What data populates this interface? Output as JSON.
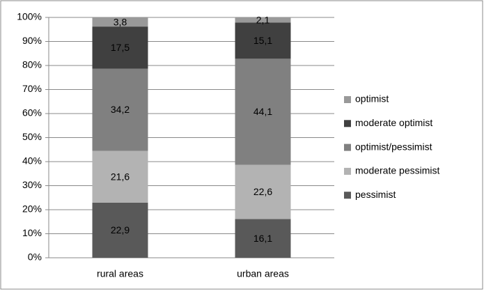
{
  "chart_data": {
    "type": "stacked_bar_100",
    "categories": [
      "rural areas",
      "urban areas"
    ],
    "series": [
      {
        "name": "pessimist",
        "color": "#595959",
        "values": [
          22.9,
          16.1
        ],
        "value_labels": [
          "22,9",
          "16,1"
        ]
      },
      {
        "name": "moderate pessimist",
        "color": "#b3b3b3",
        "values": [
          21.6,
          22.6
        ],
        "value_labels": [
          "21,6",
          "22,6"
        ]
      },
      {
        "name": "optimist/pessimist",
        "color": "#808080",
        "values": [
          34.2,
          44.1
        ],
        "value_labels": [
          "34,2",
          "44,1"
        ]
      },
      {
        "name": "moderate optimist",
        "color": "#404040",
        "values": [
          17.5,
          15.1
        ],
        "value_labels": [
          "17,5",
          "15,1"
        ]
      },
      {
        "name": "optimist",
        "color": "#999999",
        "values": [
          3.8,
          2.1
        ],
        "value_labels": [
          "3,8",
          "2,1"
        ]
      }
    ],
    "ylim": [
      0,
      100
    ],
    "yticks": [
      {
        "value": 0,
        "label": "0%"
      },
      {
        "value": 10,
        "label": "10%"
      },
      {
        "value": 20,
        "label": "20%"
      },
      {
        "value": 30,
        "label": "30%"
      },
      {
        "value": 40,
        "label": "40%"
      },
      {
        "value": 50,
        "label": "50%"
      },
      {
        "value": 60,
        "label": "60%"
      },
      {
        "value": 70,
        "label": "70%"
      },
      {
        "value": 80,
        "label": "80%"
      },
      {
        "value": 90,
        "label": "90%"
      },
      {
        "value": 100,
        "label": "100%"
      }
    ],
    "grid": true,
    "legend": "right"
  }
}
